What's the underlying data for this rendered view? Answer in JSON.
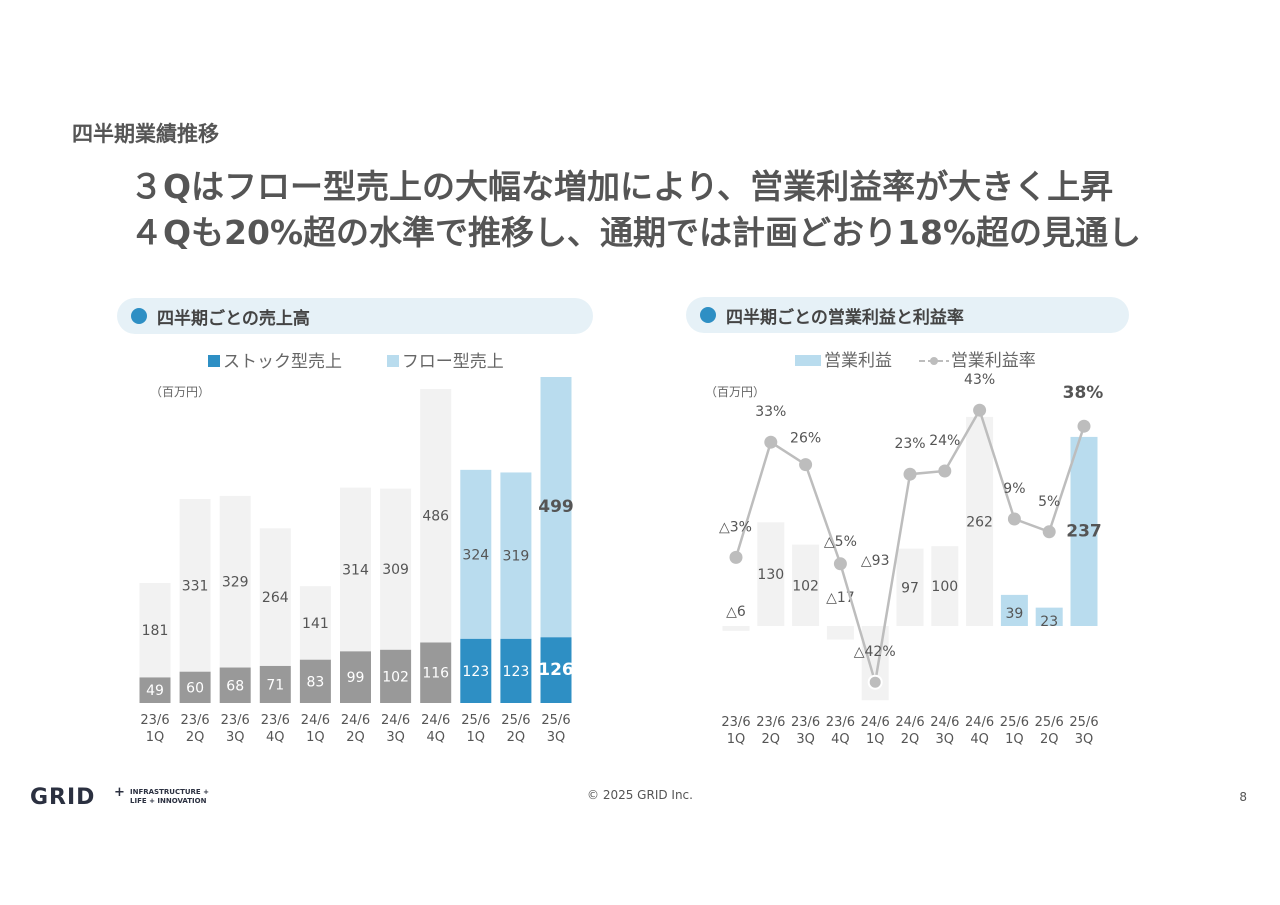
{
  "section_label": "四半期業績推移",
  "headline": {
    "line1": "３Qはフロー型売上の大幅な増加により、営業利益率が大きく上昇",
    "line2": "４Qも20%超の水準で推移し、通期では計画どおり18%超の見通し"
  },
  "left_panel": {
    "title": "四半期ごとの売上高",
    "unit": "（百万円）",
    "legend_stock": "ストック型売上",
    "legend_flow": "フロー型売上"
  },
  "right_panel": {
    "title": "四半期ごとの営業利益と利益率",
    "unit": "（百万円）",
    "legend_profit": "営業利益",
    "legend_margin": "営業利益率"
  },
  "colors": {
    "stock_past": "#999999",
    "flow_past": "#f2f2f2",
    "stock_current": "#2e8fc4",
    "flow_current": "#b9dcee",
    "profit_past": "#f2f2f2",
    "profit_current": "#b9dcee",
    "margin_line": "#bdbdbd"
  },
  "chart_data": [
    {
      "type": "bar",
      "stacked": true,
      "categories": [
        "23/6 1Q",
        "23/6 2Q",
        "23/6 3Q",
        "23/6 4Q",
        "24/6 1Q",
        "24/6 2Q",
        "24/6 3Q",
        "24/6 4Q",
        "25/6 1Q",
        "25/6 2Q",
        "25/6 3Q"
      ],
      "series": [
        {
          "name": "ストック型売上",
          "values": [
            49,
            60,
            68,
            71,
            83,
            99,
            102,
            116,
            123,
            123,
            126
          ]
        },
        {
          "name": "フロー型売上",
          "values": [
            181,
            331,
            329,
            264,
            141,
            314,
            309,
            486,
            324,
            319,
            499
          ]
        }
      ],
      "stock_labels": [
        "49",
        "60",
        "68",
        "71",
        "83",
        "99",
        "102",
        "116",
        "123",
        "123",
        "126"
      ],
      "flow_labels": [
        "181",
        "331",
        "329",
        "264",
        "141",
        "314",
        "309",
        "486",
        "324",
        "319",
        "499"
      ],
      "highlighted_from_index": 8,
      "ylim": [
        0,
        625
      ]
    },
    {
      "type": "bar",
      "categories": [
        "23/6 1Q",
        "23/6 2Q",
        "23/6 3Q",
        "23/6 4Q",
        "24/6 1Q",
        "24/6 2Q",
        "24/6 3Q",
        "24/6 4Q",
        "25/6 1Q",
        "25/6 2Q",
        "25/6 3Q"
      ],
      "series": [
        {
          "name": "営業利益",
          "values": [
            -6,
            130,
            102,
            -17,
            -93,
            97,
            100,
            262,
            39,
            23,
            237
          ]
        },
        {
          "name": "営業利益率",
          "values": [
            -3,
            33,
            26,
            -5,
            -42,
            23,
            24,
            43,
            9,
            5,
            38
          ]
        }
      ],
      "profit_labels": [
        "△6",
        "130",
        "102",
        "△17",
        "△93",
        "97",
        "100",
        "262",
        "39",
        "23",
        "237"
      ],
      "margin_labels": [
        "△3%",
        "33%",
        "26%",
        "△5%",
        "△42%",
        "23%",
        "24%",
        "43%",
        "9%",
        "5%",
        "38%"
      ],
      "highlighted_from_index": 8
    }
  ],
  "footer": {
    "logo_text": "GRID",
    "logo_tag1": "INFRASTRUCTURE +",
    "logo_tag2": "LIFE + INNOVATION",
    "copyright": "© 2025 GRID Inc.",
    "page": "8"
  }
}
